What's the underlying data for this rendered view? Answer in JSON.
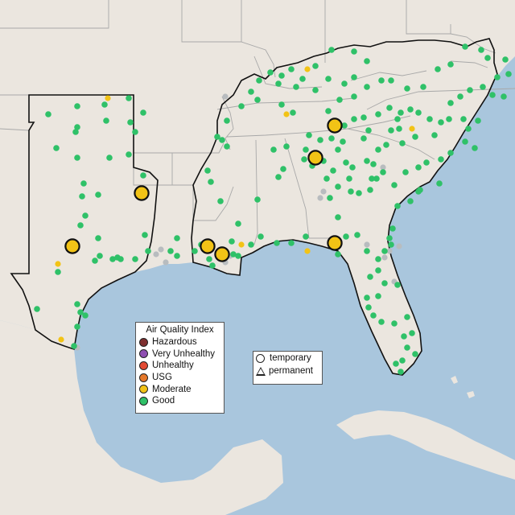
{
  "legend": {
    "title": "Air Quality Index",
    "categories": [
      {
        "label": "Hazardous",
        "color": "#7e2f2f"
      },
      {
        "label": "Very Unhealthy",
        "color": "#8f4fb2"
      },
      {
        "label": "Unhealthy",
        "color": "#e24a33"
      },
      {
        "label": "USG",
        "color": "#e5782a"
      },
      {
        "label": "Moderate",
        "color": "#f2c316"
      },
      {
        "label": "Good",
        "color": "#2fc168"
      }
    ]
  },
  "monitor_types": {
    "temporary": "temporary",
    "permanent": "permanent"
  },
  "colors": {
    "land": "#ebe6df",
    "water": "#a9c6dd",
    "no_data": "#b8bcbf"
  }
}
